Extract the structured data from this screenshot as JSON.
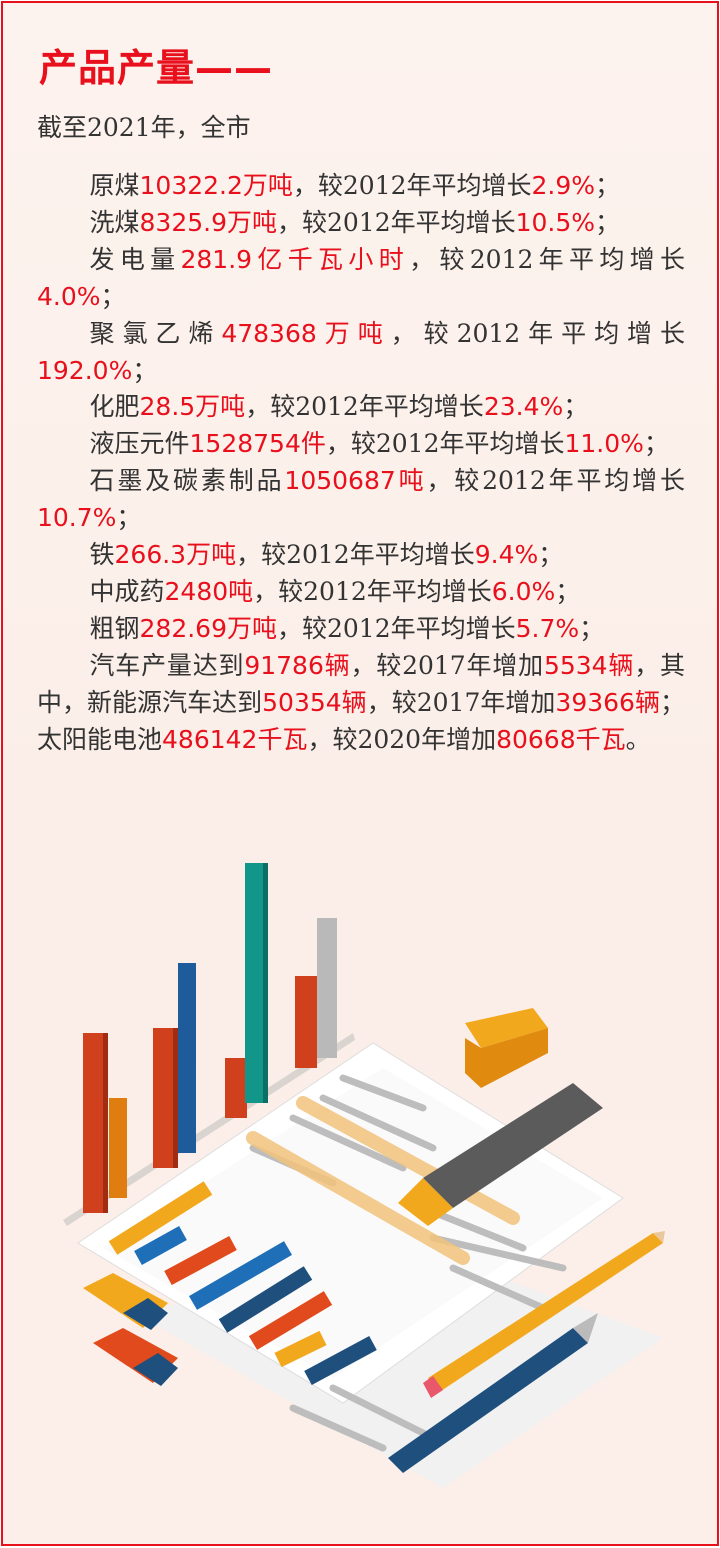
{
  "title": "产品产量——",
  "intro": "截至2021年，全市",
  "colors": {
    "accent": "#e8101c",
    "text": "#333333",
    "background": "#fcefe9"
  },
  "paragraphs": [
    [
      {
        "t": "原煤"
      },
      {
        "t": "10322.2万吨",
        "hl": true
      },
      {
        "t": "，较2012年平均增长"
      },
      {
        "t": "2.9%",
        "hl": true
      },
      {
        "t": "；"
      }
    ],
    [
      {
        "t": "洗煤"
      },
      {
        "t": "8325.9万吨",
        "hl": true
      },
      {
        "t": "，较2012年平均增长"
      },
      {
        "t": "10.5%",
        "hl": true
      },
      {
        "t": "；"
      }
    ],
    [
      {
        "t": "发电量"
      },
      {
        "t": "281.9亿千瓦小时",
        "hl": true
      },
      {
        "t": "，较2012年平均增长"
      },
      {
        "t": "4.0%",
        "hl": true
      },
      {
        "t": "；"
      }
    ],
    [
      {
        "t": "聚氯乙烯"
      },
      {
        "t": "478368万吨",
        "hl": true
      },
      {
        "t": "，较2012年平均增长"
      },
      {
        "t": "192.0%",
        "hl": true
      },
      {
        "t": "；"
      }
    ],
    [
      {
        "t": "化肥"
      },
      {
        "t": "28.5万吨",
        "hl": true
      },
      {
        "t": "，较2012年平均增长"
      },
      {
        "t": "23.4%",
        "hl": true
      },
      {
        "t": "；"
      }
    ],
    [
      {
        "t": "液压元件"
      },
      {
        "t": "1528754件",
        "hl": true
      },
      {
        "t": "，较2012年平均增长"
      },
      {
        "t": "11.0%",
        "hl": true
      },
      {
        "t": "；"
      }
    ],
    [
      {
        "t": "石墨及碳素制品"
      },
      {
        "t": "1050687吨",
        "hl": true
      },
      {
        "t": "，较2012年平均增长"
      },
      {
        "t": "10.7%",
        "hl": true
      },
      {
        "t": "；"
      }
    ],
    [
      {
        "t": "铁"
      },
      {
        "t": "266.3万吨",
        "hl": true
      },
      {
        "t": "，较2012年平均增长"
      },
      {
        "t": "9.4%",
        "hl": true
      },
      {
        "t": "；"
      }
    ],
    [
      {
        "t": "中成药"
      },
      {
        "t": "2480吨",
        "hl": true
      },
      {
        "t": "，较2012年平均增长"
      },
      {
        "t": "6.0%",
        "hl": true
      },
      {
        "t": "；"
      }
    ],
    [
      {
        "t": "粗钢"
      },
      {
        "t": "282.69万吨",
        "hl": true
      },
      {
        "t": "，较2012年平均增长"
      },
      {
        "t": "5.7%",
        "hl": true
      },
      {
        "t": "；"
      }
    ],
    [
      {
        "t": "汽车产量达到"
      },
      {
        "t": "91786辆",
        "hl": true
      },
      {
        "t": "，较2017年增加"
      },
      {
        "t": "5534辆",
        "hl": true
      },
      {
        "t": "，其中，新能源汽车达到"
      },
      {
        "t": "50354辆",
        "hl": true
      },
      {
        "t": "，较2017年增加"
      },
      {
        "t": "39366辆",
        "hl": true
      },
      {
        "t": "；太阳能电池"
      },
      {
        "t": "486142千瓦",
        "hl": true
      },
      {
        "t": "，较2020年增加"
      },
      {
        "t": "80668千瓦",
        "hl": true
      },
      {
        "t": "。"
      }
    ]
  ]
}
